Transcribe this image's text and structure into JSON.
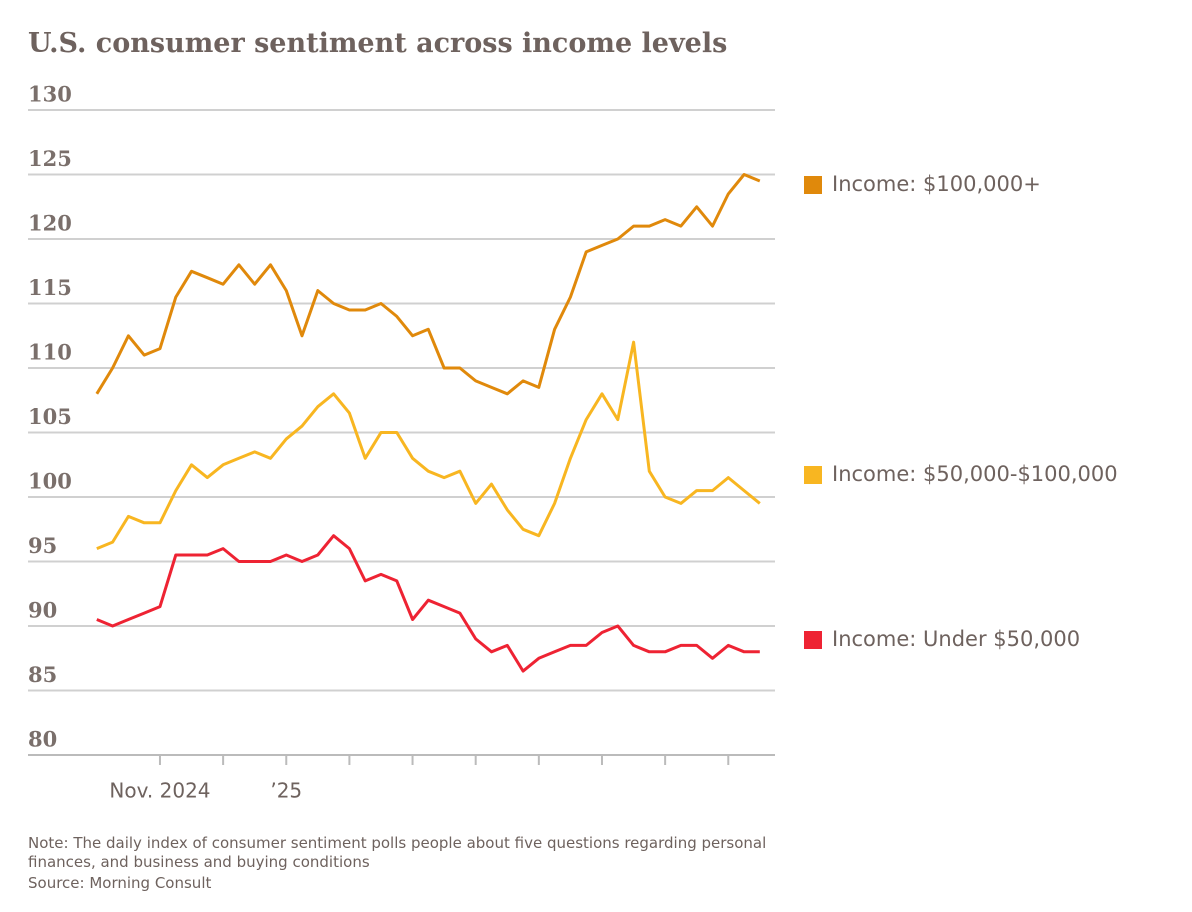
{
  "chart_data": {
    "type": "line",
    "title": "U.S. consumer sentiment across income levels",
    "x": [
      0,
      0.25,
      0.5,
      0.75,
      1,
      1.25,
      1.5,
      1.75,
      2,
      2.25,
      2.5,
      2.75,
      3,
      3.25,
      3.5,
      3.75,
      4,
      4.25,
      4.5,
      4.75,
      5,
      5.25,
      5.5,
      5.75,
      6,
      6.25,
      6.5,
      6.75,
      7,
      7.25,
      7.5,
      7.75,
      8,
      8.25,
      8.5,
      8.75,
      9,
      9.25,
      9.5,
      9.75,
      10,
      10.25,
      10.5
    ],
    "series": [
      {
        "name": "Income: $100,000+",
        "color": "#e0890b",
        "values": [
          108,
          110,
          112.5,
          111,
          111.5,
          115.5,
          117.5,
          117,
          116.5,
          118,
          116.5,
          118,
          116,
          112.5,
          116,
          115,
          114.5,
          114.5,
          115,
          114,
          112.5,
          113,
          110,
          110,
          109,
          108.5,
          108,
          109,
          108.5,
          113,
          115.5,
          119,
          119.5,
          120,
          121,
          121,
          121.5,
          121,
          122.5,
          121,
          123.5,
          125,
          124.5
        ]
      },
      {
        "name": "Income: $50,000-$100,000",
        "color": "#f8b621",
        "values": [
          96,
          96.5,
          98.5,
          98,
          98,
          100.5,
          102.5,
          101.5,
          102.5,
          103,
          103.5,
          103,
          104.5,
          105.5,
          107,
          108,
          106.5,
          103,
          105,
          105,
          103,
          102,
          101.5,
          102,
          99.5,
          101,
          99,
          97.5,
          97,
          99.5,
          103,
          106,
          108,
          106,
          112,
          102,
          100,
          99.5,
          100.5,
          100.5,
          101.5,
          100.5,
          99.5
        ]
      },
      {
        "name": "Income: Under $50,000",
        "color": "#ee2333",
        "values": [
          90.5,
          90,
          90.5,
          91,
          91.5,
          95.5,
          95.5,
          95.5,
          96,
          95,
          95,
          95,
          95.5,
          95,
          95.5,
          97,
          96,
          93.5,
          94,
          93.5,
          90.5,
          92,
          91.5,
          91,
          89,
          88,
          88.5,
          86.5,
          87.5,
          88,
          88.5,
          88.5,
          89.5,
          90,
          88.5,
          88,
          88,
          88.5,
          88.5,
          87.5,
          88.5,
          88,
          88
        ]
      }
    ],
    "xlim": [
      -1.09,
      10.74
    ],
    "xticks": [
      {
        "value": 1,
        "label": "Nov. 2024"
      },
      {
        "value": 3,
        "label": "’25"
      }
    ],
    "xtick_marks": [
      1,
      2,
      3,
      4,
      5,
      6,
      7,
      8,
      9,
      10
    ],
    "ylim": [
      80,
      130
    ],
    "yticks": [
      80,
      85,
      90,
      95,
      100,
      105,
      110,
      115,
      120,
      125,
      130
    ],
    "grid": true,
    "note": "Note: The daily index of consumer sentiment polls people about five questions regarding personal finances, and business and buying conditions",
    "source": "Source: Morning Consult"
  }
}
